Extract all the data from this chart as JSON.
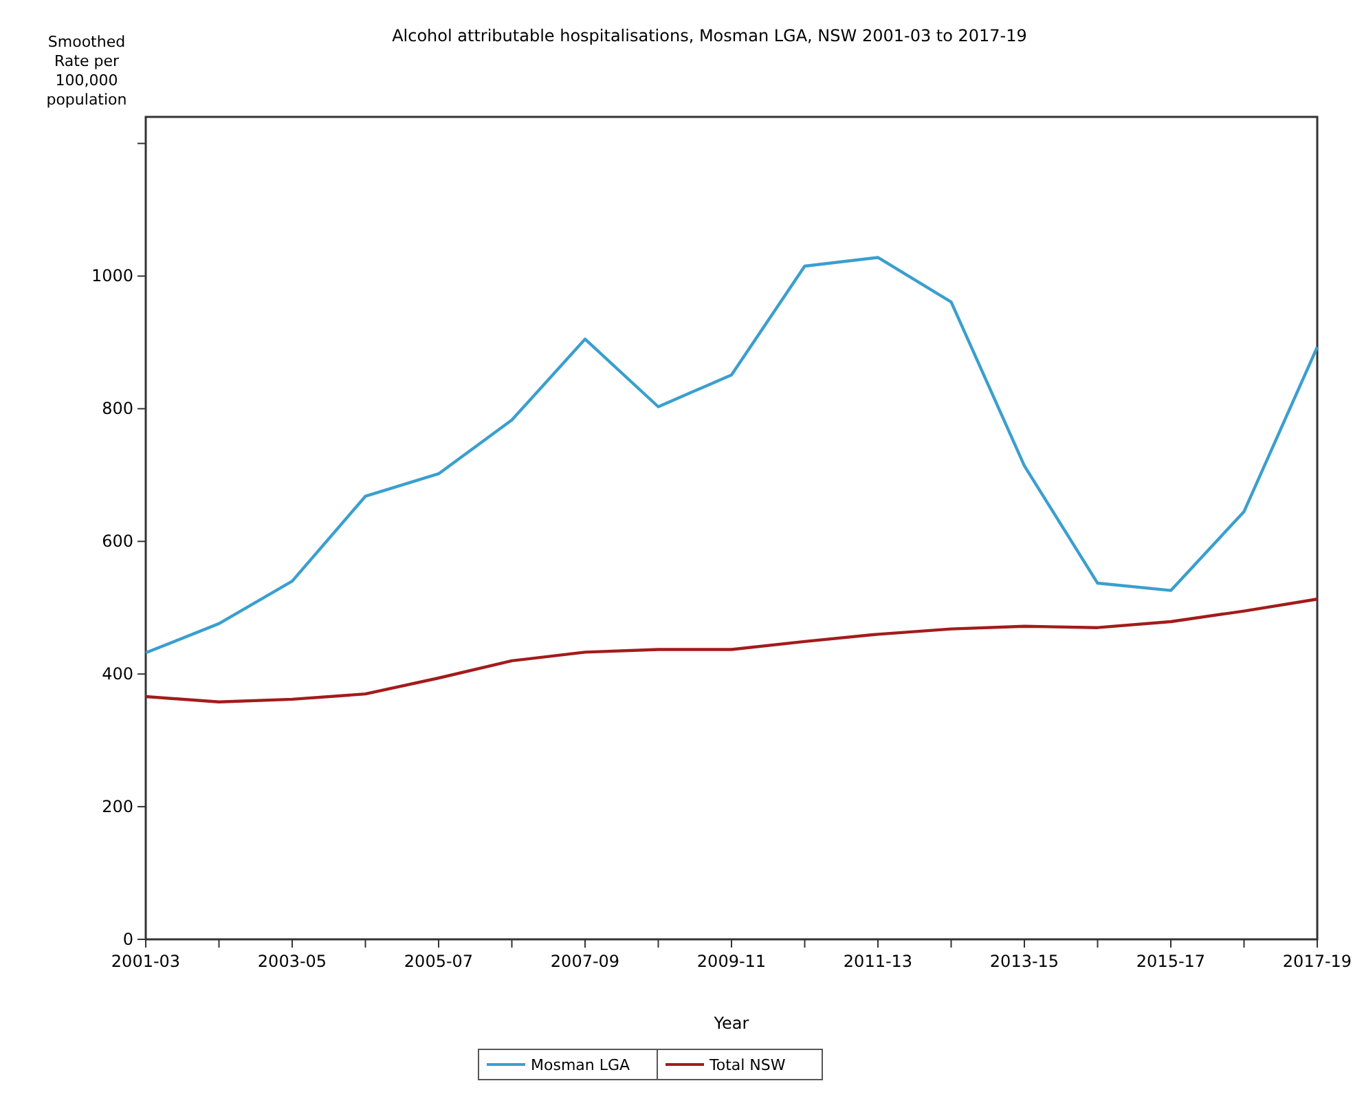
{
  "chart_data": {
    "type": "line",
    "title": "Alcohol attributable hospitalisations, Mosman LGA, NSW 2001-03 to 2017-19",
    "xlabel": "Year",
    "ylabel": "Smoothed Rate per 100,000 population",
    "categories": [
      "2001-03",
      null,
      "2003-05",
      null,
      "2005-07",
      null,
      "2007-09",
      null,
      "2009-11",
      null,
      "2011-13",
      null,
      "2013-15",
      null,
      "2015-17",
      null,
      "2017-19"
    ],
    "ylim": [
      0,
      1240
    ],
    "yticks": [
      0,
      200,
      400,
      600,
      800,
      1000,
      {
        "value": 1200,
        "label": null
      }
    ],
    "grid": false,
    "legend": "bottom",
    "marker": "none",
    "line_style": "solid",
    "series": [
      {
        "name": "Mosman LGA",
        "color": "#3a9fcf",
        "values": [
          432,
          476,
          540,
          668,
          702,
          783,
          905,
          803,
          851,
          1015,
          1028,
          961,
          714,
          537,
          526,
          645,
          893
        ]
      },
      {
        "name": "Total NSW",
        "color": "#a31b1b",
        "values": [
          366,
          358,
          362,
          370,
          394,
          420,
          433,
          437,
          437,
          449,
          460,
          468,
          472,
          470,
          479,
          495,
          513
        ]
      }
    ]
  }
}
